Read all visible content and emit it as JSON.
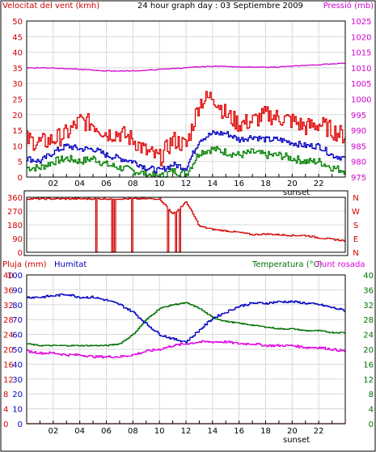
{
  "colors": {
    "wind_gust": "#e00000",
    "wind_avg": "#0000c0",
    "wind_min": "#008000",
    "pressure": "#d000d0",
    "direction": "#d00000",
    "rain": "#e00000",
    "humidity": "#0000c0",
    "temperature": "#007000",
    "dewpoint": "#e000e0",
    "frame": "#000000",
    "grid": "#d8d8d8"
  },
  "chart_data": [
    {
      "type": "line",
      "title": "24 hour graph day : 03 Septiembre 2009",
      "ylabel_left": "Velocitat del vent (kmh)",
      "ylabel_right": "Pressió (mb)",
      "ylim_left": [
        0,
        50
      ],
      "ylim_right": [
        975,
        1025
      ],
      "yticks_left": [
        "0",
        "5",
        "10",
        "15",
        "20",
        "25",
        "30",
        "35",
        "40",
        "45",
        "50"
      ],
      "yticks_right": [
        "975",
        "980",
        "985",
        "990",
        "995",
        "1000",
        "1005",
        "1010",
        "1015",
        "1020",
        "1025"
      ],
      "x_ticks": [
        "02",
        "04",
        "06",
        "08",
        "10",
        "12",
        "14",
        "16",
        "18",
        "20",
        "22"
      ],
      "annotation": "sunset",
      "grid": true,
      "x": [
        0,
        1,
        2,
        3,
        4,
        5,
        6,
        7,
        8,
        9,
        10,
        11,
        12,
        13,
        14,
        15,
        16,
        17,
        18,
        19,
        20,
        21,
        22,
        23,
        24
      ],
      "series": [
        {
          "key": "gust",
          "axis": "left",
          "values": [
            12,
            11,
            12,
            14,
            18,
            17,
            14,
            14,
            12,
            8,
            6,
            12,
            10,
            24,
            26,
            20,
            17,
            18,
            20,
            19,
            18,
            16,
            17,
            15,
            13
          ]
        },
        {
          "key": "avg",
          "axis": "left",
          "values": [
            6,
            5,
            8,
            10,
            9,
            9,
            7,
            6,
            5,
            3,
            2,
            4,
            3,
            12,
            14,
            14,
            12,
            13,
            12,
            12,
            11,
            10,
            10,
            7,
            6
          ]
        },
        {
          "key": "min",
          "axis": "left",
          "values": [
            3,
            3,
            5,
            6,
            5,
            6,
            4,
            3,
            2,
            1,
            0,
            2,
            1,
            8,
            9,
            8,
            7,
            8,
            7,
            7,
            6,
            5,
            5,
            3,
            2
          ]
        },
        {
          "key": "pressure",
          "axis": "right",
          "values": [
            1010,
            1010,
            1010,
            1009.7,
            1009.5,
            1009.3,
            1009,
            1009,
            1009,
            1009.2,
            1009.5,
            1009.8,
            1010,
            1010.3,
            1010.5,
            1010.5,
            1010.3,
            1010.2,
            1010.2,
            1010.3,
            1010.5,
            1010.8,
            1011,
            1011.3,
            1011.5
          ]
        }
      ]
    },
    {
      "type": "line",
      "ylabel_left": "",
      "ylabel_right": "N W S E N",
      "ylim": [
        0,
        360
      ],
      "yticks": [
        "0",
        "90",
        "180",
        "270",
        "360"
      ],
      "direction_labels": [
        "N",
        "W",
        "S",
        "E",
        "N"
      ],
      "x": [
        0,
        1,
        2,
        3,
        4,
        5,
        6,
        7,
        8,
        9,
        10,
        11,
        12,
        13,
        14,
        15,
        16,
        17,
        18,
        19,
        20,
        21,
        22,
        23,
        24
      ],
      "series": [
        {
          "key": "direction",
          "values": [
            350,
            350,
            350,
            350,
            350,
            350,
            350,
            350,
            350,
            350,
            350,
            250,
            330,
            170,
            150,
            140,
            130,
            115,
            120,
            115,
            110,
            110,
            95,
            85,
            75
          ]
        }
      ]
    },
    {
      "type": "line",
      "legend": [
        "Pluja (mm)",
        "Humitat",
        "Temperatura (°C)",
        "Punt rosada"
      ],
      "ylim_rain": [
        0,
        40
      ],
      "ylim_humidity": [
        0,
        100
      ],
      "ylim_temp": [
        0,
        40
      ],
      "yticks_rain": [
        "0",
        "4",
        "8",
        "12",
        "16",
        "20",
        "24",
        "28",
        "32",
        "36",
        "40"
      ],
      "yticks_humidity": [
        "0",
        "10",
        "20",
        "30",
        "40",
        "50",
        "60",
        "70",
        "80",
        "90",
        "100"
      ],
      "yticks_temp": [
        "0",
        "4",
        "8",
        "12",
        "16",
        "20",
        "24",
        "28",
        "32",
        "36",
        "40"
      ],
      "x_ticks": [
        "02",
        "04",
        "06",
        "08",
        "10",
        "12",
        "14",
        "16",
        "18",
        "20",
        "22"
      ],
      "annotation": "sunset",
      "grid": true,
      "x": [
        0,
        1,
        2,
        3,
        4,
        5,
        6,
        7,
        8,
        9,
        10,
        11,
        12,
        13,
        14,
        15,
        16,
        17,
        18,
        19,
        20,
        21,
        22,
        23,
        24
      ],
      "series": [
        {
          "key": "rain",
          "axis": "rain",
          "values": [
            0,
            0,
            0,
            0,
            0,
            0,
            0,
            0,
            0,
            0,
            0,
            0,
            0,
            0,
            0,
            0,
            0,
            0,
            0,
            0,
            0,
            0,
            0,
            0,
            0
          ]
        },
        {
          "key": "humidity",
          "axis": "humidity",
          "values": [
            85,
            85,
            86,
            87,
            85,
            85,
            83,
            80,
            75,
            67,
            60,
            57,
            55,
            63,
            71,
            75,
            79,
            81,
            81,
            82,
            82,
            81,
            80,
            78,
            76
          ]
        },
        {
          "key": "temperature",
          "axis": "temp",
          "values": [
            21.5,
            21,
            21,
            21,
            21,
            21,
            21,
            21.5,
            24,
            28,
            31,
            32,
            32.5,
            31,
            28.5,
            27.5,
            27,
            26.5,
            26,
            25.5,
            25.5,
            25,
            25,
            24.5,
            24.5
          ]
        },
        {
          "key": "dewpoint",
          "axis": "temp",
          "values": [
            19.5,
            19,
            19,
            18.5,
            18.5,
            18,
            18,
            18,
            18.5,
            19.5,
            20,
            21,
            21.5,
            22,
            22,
            22,
            21.5,
            21.5,
            21,
            21,
            21,
            20.5,
            20.5,
            20,
            19.5
          ]
        }
      ]
    }
  ]
}
